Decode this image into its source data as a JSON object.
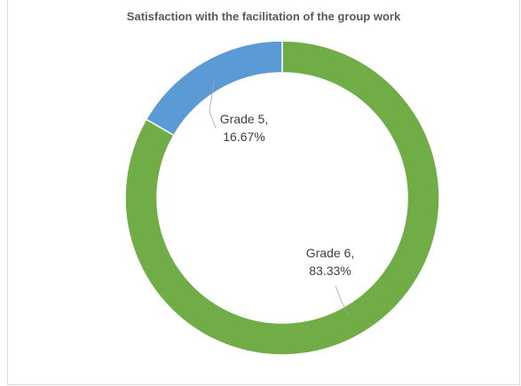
{
  "chart_data": {
    "type": "pie",
    "subtype": "doughnut",
    "title": "Satisfaction with the facilitation of the group work",
    "categories": [
      "Grade 5",
      "Grade 6"
    ],
    "values": [
      16.67,
      83.33
    ],
    "unit": "%",
    "labels": [
      {
        "category": "Grade 5,",
        "value": "16.67%"
      },
      {
        "category": "Grade 6,",
        "value": "83.33%"
      }
    ],
    "colors": [
      "#5b9bd5",
      "#70ad47"
    ],
    "legend": "none"
  }
}
